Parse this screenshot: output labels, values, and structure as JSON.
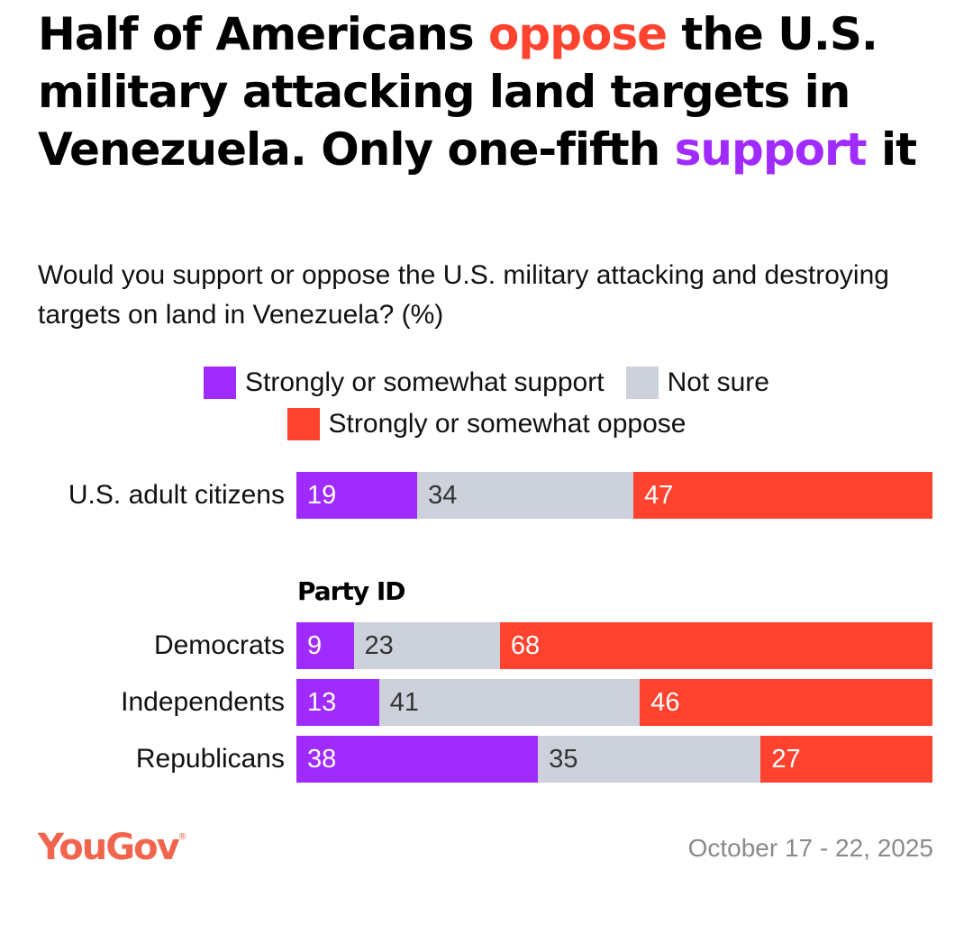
{
  "title": {
    "part1": "Half of Americans ",
    "highlight_oppose": "oppose",
    "part2": " the U.S. military attacking land targets in Venezuela. Only one-fifth ",
    "highlight_support": "support",
    "part3": " it"
  },
  "subtitle": "Would you support or oppose the U.S. military attacking and destroying targets on land in Venezuela? (%)",
  "colors": {
    "support": "#a02bff",
    "not_sure": "#cdd1dc",
    "oppose": "#ff432e",
    "label_on_dark": "#ffffff",
    "label_on_light": "#333333"
  },
  "chart_data": {
    "type": "bar",
    "orientation": "horizontal-stacked-100",
    "title": "Half of Americans oppose the U.S. military attacking land targets in Venezuela. Only one-fifth support it",
    "subtitle": "Would you support or oppose the U.S. military attacking and destroying targets on land in Venezuela? (%)",
    "xlabel": "",
    "ylabel": "",
    "xlim": [
      0,
      100
    ],
    "legend_position": "top-center",
    "grid": false,
    "legend": [
      "Strongly or somewhat support",
      "Not sure",
      "Strongly or somewhat oppose"
    ],
    "categories": [
      "U.S. adult citizens",
      "Democrats",
      "Independents",
      "Republicans"
    ],
    "group_label": "Party ID",
    "series": [
      {
        "name": "Strongly or somewhat support",
        "values": [
          19,
          9,
          13,
          38
        ]
      },
      {
        "name": "Not sure",
        "values": [
          34,
          23,
          41,
          35
        ]
      },
      {
        "name": "Strongly or somewhat oppose",
        "values": [
          47,
          68,
          46,
          27
        ]
      }
    ]
  },
  "footer": {
    "brand": "YouGov",
    "registered_mark": "®",
    "date": "October 17 - 22, 2025"
  }
}
